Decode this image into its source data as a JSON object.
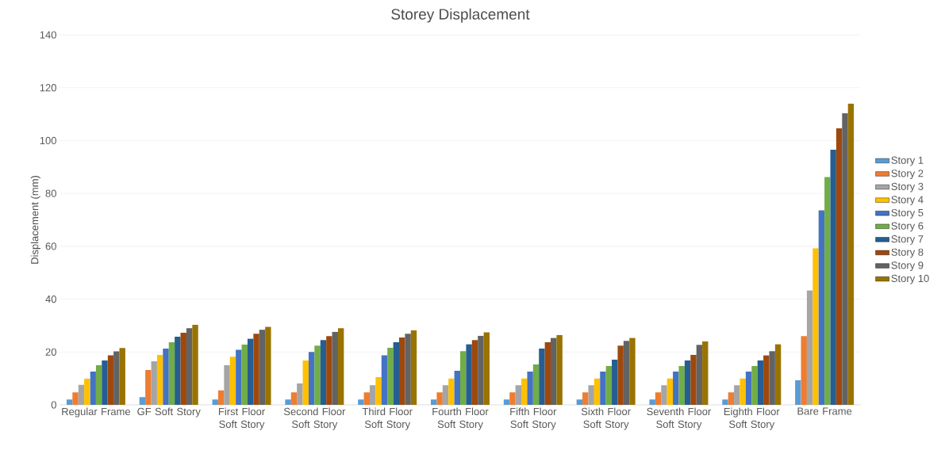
{
  "chart_data": {
    "type": "bar",
    "title": "Storey Displacement",
    "ylabel": "Displacement (mm)",
    "categories": [
      "Regular Frame",
      "GF Soft Story",
      "First Floor Soft Story",
      "Second Floor Soft Story",
      "Third Floor Soft Story",
      "Fourth Floor Soft Story",
      "Fifth Floor Soft Story",
      "Sixth Floor Soft Story",
      "Seventh Floor Soft Story",
      "Eighth Floor Soft Story",
      "Bare Frame"
    ],
    "series": [
      {
        "name": "Story 1",
        "color": "#5b9bd5",
        "values": [
          2.0,
          2.9,
          2.0,
          2.0,
          2.0,
          2.0,
          2.0,
          2.0,
          2.0,
          2.0,
          9.3
        ]
      },
      {
        "name": "Story 2",
        "color": "#ed7d31",
        "values": [
          4.7,
          13.2,
          5.5,
          4.7,
          4.7,
          4.7,
          4.7,
          4.7,
          4.7,
          4.7,
          26.0
        ]
      },
      {
        "name": "Story 3",
        "color": "#a5a5a5",
        "values": [
          7.6,
          16.5,
          15.0,
          8.1,
          7.4,
          7.4,
          7.4,
          7.4,
          7.4,
          7.4,
          43.3
        ]
      },
      {
        "name": "Story 4",
        "color": "#ffc000",
        "values": [
          9.9,
          18.9,
          18.2,
          16.8,
          10.5,
          10.0,
          10.0,
          10.0,
          10.0,
          10.0,
          59.3
        ]
      },
      {
        "name": "Story 5",
        "color": "#4472c4",
        "values": [
          12.6,
          21.3,
          20.8,
          20.0,
          18.7,
          12.9,
          12.6,
          12.6,
          12.6,
          12.6,
          73.6
        ]
      },
      {
        "name": "Story 6",
        "color": "#70ad47",
        "values": [
          15.0,
          23.7,
          22.8,
          22.4,
          21.6,
          20.3,
          15.3,
          14.7,
          14.7,
          14.7,
          86.2
        ]
      },
      {
        "name": "Story 7",
        "color": "#255e91",
        "values": [
          16.8,
          25.8,
          25.0,
          24.5,
          23.7,
          22.9,
          21.3,
          17.1,
          16.8,
          16.8,
          96.5
        ]
      },
      {
        "name": "Story 8",
        "color": "#9e480e",
        "values": [
          18.7,
          27.3,
          26.9,
          26.0,
          25.5,
          24.5,
          23.7,
          22.4,
          18.9,
          18.7,
          104.6
        ]
      },
      {
        "name": "Story 9",
        "color": "#636363",
        "values": [
          20.2,
          29.0,
          28.4,
          27.6,
          26.9,
          26.1,
          25.3,
          24.2,
          22.7,
          20.3,
          110.3
        ]
      },
      {
        "name": "Story 10",
        "color": "#997300",
        "values": [
          21.5,
          30.3,
          29.5,
          29.0,
          28.2,
          27.4,
          26.4,
          25.3,
          24.0,
          22.9,
          114.0
        ]
      }
    ],
    "ylim": [
      0,
      140
    ],
    "yticks": [
      0,
      20,
      40,
      60,
      80,
      100,
      120,
      140
    ],
    "grid": "y",
    "legend": "right"
  }
}
